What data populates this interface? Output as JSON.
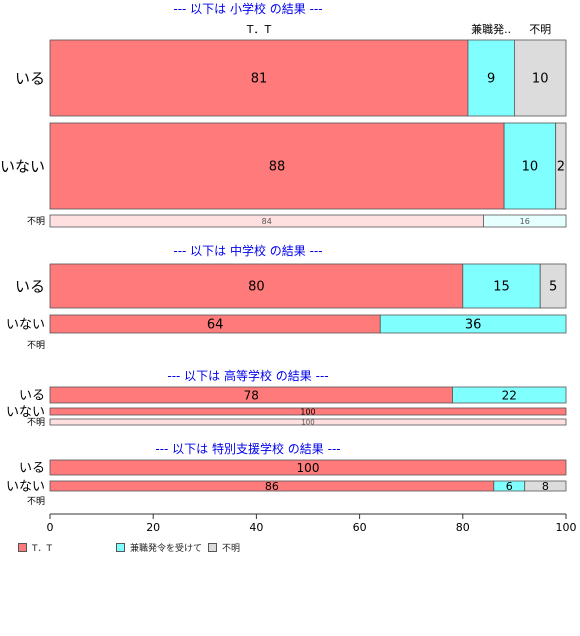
{
  "chart_data": {
    "type": "bar",
    "orientation": "horizontal",
    "stacked": true,
    "percent": true,
    "xlim": [
      0,
      100
    ],
    "x_ticks": [
      "0",
      "20",
      "40",
      "60",
      "80",
      "100"
    ],
    "legend_position": "bottom-left",
    "categories": [
      "T．T",
      "兼職発令を受けて",
      "不明"
    ],
    "category_header_labels": [
      "T．T",
      "兼職発..",
      "不明"
    ],
    "colors": {
      "T．T": "#ff7a7a",
      "兼職発令を受けて": "#80ffff",
      "不明": "#dcdcdc",
      "title": "#0000ee"
    },
    "groups": [
      {
        "title": "--- 以下は 小学校 の結果 ---",
        "rows": [
          {
            "label": "いる",
            "values": [
              81,
              9,
              10
            ],
            "value_labels": [
              "81",
              "9",
              "10"
            ]
          },
          {
            "label": "いない",
            "values": [
              88,
              10,
              2
            ],
            "value_labels": [
              "88",
              "10",
              "2"
            ]
          },
          {
            "label": "不明",
            "values": [
              84,
              16,
              0
            ],
            "value_labels": [
              "84",
              "16",
              ""
            ]
          }
        ]
      },
      {
        "title": "--- 以下は 中学校 の結果 ---",
        "rows": [
          {
            "label": "いる",
            "values": [
              80,
              15,
              5
            ],
            "value_labels": [
              "80",
              "15",
              "5"
            ]
          },
          {
            "label": "いない",
            "values": [
              64,
              36,
              0
            ],
            "value_labels": [
              "64",
              "36",
              ""
            ]
          },
          {
            "label": "不明",
            "values": [],
            "value_labels": []
          }
        ]
      },
      {
        "title": "--- 以下は 高等学校 の結果 ---",
        "rows": [
          {
            "label": "いる",
            "values": [
              78,
              22,
              0
            ],
            "value_labels": [
              "78",
              "22",
              ""
            ]
          },
          {
            "label": "いない",
            "values": [
              100,
              0,
              0
            ],
            "value_labels": [
              "100",
              "",
              ""
            ]
          },
          {
            "label": "不明",
            "values": [
              100,
              0,
              0
            ],
            "value_labels": [
              "100",
              "",
              ""
            ]
          }
        ]
      },
      {
        "title": "--- 以下は 特別支援学校 の結果 ---",
        "rows": [
          {
            "label": "いる",
            "values": [
              100,
              0,
              0
            ],
            "value_labels": [
              "100",
              "",
              ""
            ]
          },
          {
            "label": "いない",
            "values": [
              86,
              6,
              8
            ],
            "value_labels": [
              "86",
              "6",
              "8"
            ]
          },
          {
            "label": "不明",
            "values": [],
            "value_labels": []
          }
        ]
      }
    ]
  }
}
